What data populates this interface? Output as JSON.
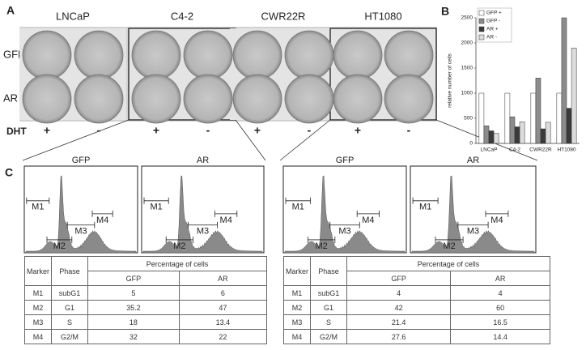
{
  "figure_labels": [
    "A",
    "B",
    "C"
  ],
  "panel_a": {
    "cell_lines": [
      "LNCaP",
      "C4-2",
      "CWR22R",
      "HT1080"
    ],
    "constructs": [
      "GFP",
      "AR"
    ],
    "treatment_label": "DHT",
    "treatments": [
      "+",
      "-",
      "+",
      "-",
      "+",
      "-",
      "+",
      "-"
    ]
  },
  "chart_data": {
    "type": "bar",
    "y_label": "relative number of cells",
    "categories": [
      "LNCaP",
      "C4-2",
      "CWR22R",
      "HT1080"
    ],
    "series": [
      {
        "name": "GFP +",
        "color": "#ffffff",
        "values": [
          1000,
          1000,
          1000,
          1000
        ]
      },
      {
        "name": "GFP -",
        "color": "#8c8c8c",
        "values": [
          350,
          530,
          1300,
          2500
        ]
      },
      {
        "name": "AR +",
        "color": "#3a3a3a",
        "values": [
          250,
          330,
          290,
          700
        ]
      },
      {
        "name": "AR -",
        "color": "#dcdcdc",
        "values": [
          200,
          430,
          420,
          1900
        ]
      }
    ],
    "ylim": [
      0,
      2500
    ],
    "yticks": [
      0,
      500,
      1000,
      1500,
      2000,
      2500
    ],
    "legend": "upper left"
  },
  "panel_c": {
    "histograms": [
      {
        "title": "GFP",
        "markers": [
          "M1",
          "M2",
          "M3",
          "M4"
        ]
      },
      {
        "title": "AR",
        "markers": [
          "M1",
          "M2",
          "M3",
          "M4"
        ]
      },
      {
        "title": "GFP",
        "markers": [
          "M1",
          "M2",
          "M3",
          "M4"
        ]
      },
      {
        "title": "AR",
        "markers": [
          "M1",
          "M2",
          "M3",
          "M4"
        ]
      }
    ],
    "tables": [
      {
        "header": [
          "Marker",
          "Phase",
          "Percentage of cells"
        ],
        "subheader": [
          "GFP",
          "AR"
        ],
        "rows": [
          [
            "M1",
            "subG1",
            5,
            6
          ],
          [
            "M2",
            "G1",
            35.2,
            47
          ],
          [
            "M3",
            "S",
            18,
            13.4
          ],
          [
            "M4",
            "G2/M",
            32,
            22
          ]
        ]
      },
      {
        "header": [
          "Marker",
          "Phase",
          "Percentage of cells"
        ],
        "subheader": [
          "GFP",
          "AR"
        ],
        "rows": [
          [
            "M1",
            "subG1",
            4,
            4
          ],
          [
            "M2",
            "G1",
            42,
            60
          ],
          [
            "M3",
            "S",
            21.4,
            16.5
          ],
          [
            "M4",
            "G2/M",
            27.6,
            14.4
          ]
        ]
      }
    ]
  }
}
